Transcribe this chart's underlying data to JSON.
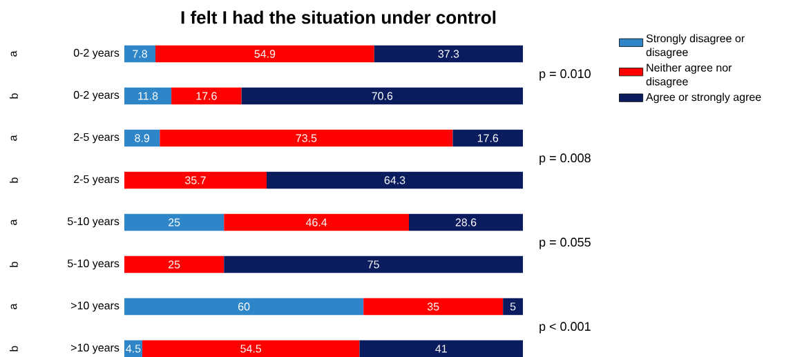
{
  "chart_data": {
    "type": "bar",
    "orientation": "horizontal",
    "stacked": true,
    "title": "I felt I had the situation under control",
    "categories": [
      "0-2 years",
      "0-2 years",
      "2-5 years",
      "2-5 years",
      "5-10 years",
      "5-10 years",
      ">10 years",
      ">10 years"
    ],
    "series": [
      {
        "name": "Strongly disagree or disagree",
        "color": "#2e86c8",
        "values": [
          7.8,
          11.8,
          8.9,
          null,
          25,
          null,
          60,
          4.5
        ]
      },
      {
        "name": "Neither agree nor disagree",
        "color": "#fe0000",
        "values": [
          54.9,
          17.6,
          73.5,
          35.7,
          46.4,
          25,
          35,
          54.5
        ]
      },
      {
        "name": "Agree or strongly agree",
        "color": "#0b1c5e",
        "values": [
          37.3,
          70.6,
          17.6,
          64.3,
          28.6,
          75,
          5,
          41
        ]
      }
    ],
    "data_labels": true,
    "legend": "right",
    "annotations": [
      "p = 0.010",
      "p = 0.008",
      "p = 0.055",
      "p < 0.001",
      "a",
      "b",
      "a",
      "b",
      "a",
      "b",
      "a",
      "b"
    ]
  }
}
